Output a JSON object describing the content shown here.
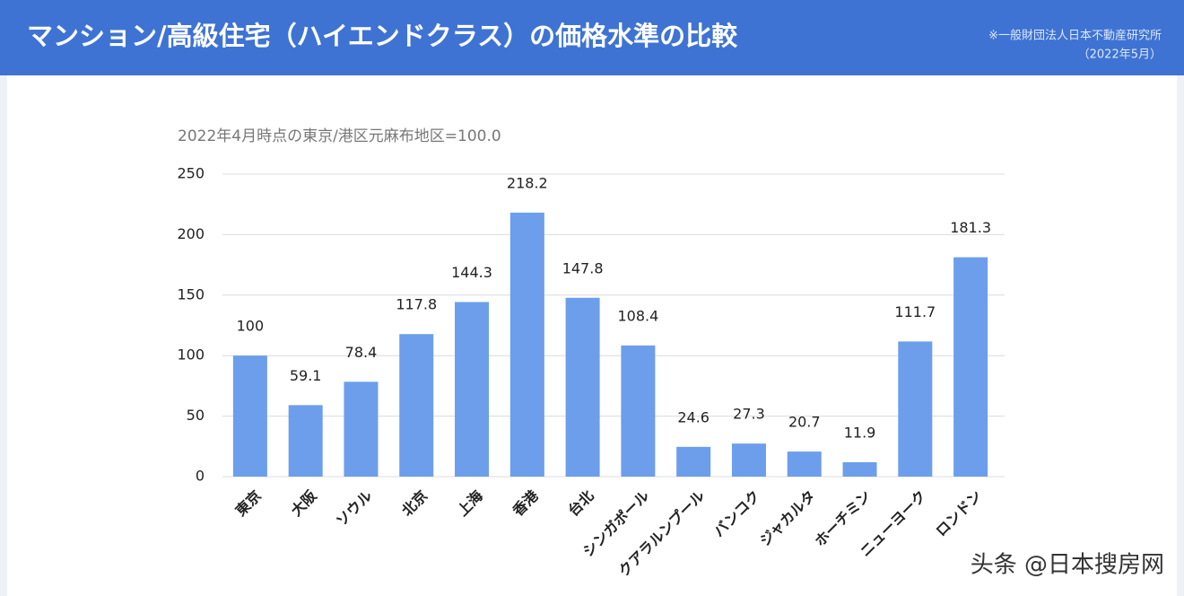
{
  "chart_data": {
    "type": "bar",
    "title": "マンション/高級住宅（ハイエンドクラス）の価格水準の比較",
    "source": "※一般財団法人日本不動産研究所",
    "source_date": "（2022年5月）",
    "subtitle": "2022年4月時点の東京/港区元麻布地区=100.0",
    "categories": [
      "東京",
      "大阪",
      "ソウル",
      "北京",
      "上海",
      "香港",
      "台北",
      "シンガポール",
      "クアラルンプール",
      "バンコク",
      "ジャカルタ",
      "ホーチミン",
      "ニューヨーク",
      "ロンドン"
    ],
    "values": [
      100,
      59.1,
      78.4,
      117.8,
      144.3,
      218.2,
      147.8,
      108.4,
      24.6,
      27.3,
      20.7,
      11.9,
      111.7,
      181.3
    ],
    "color": "#6d9eeb",
    "ylim": [
      0,
      250
    ],
    "yticks": [
      0,
      50,
      100,
      150,
      200,
      250
    ],
    "grid": true,
    "watermark": "头条 @日本搜房网"
  }
}
